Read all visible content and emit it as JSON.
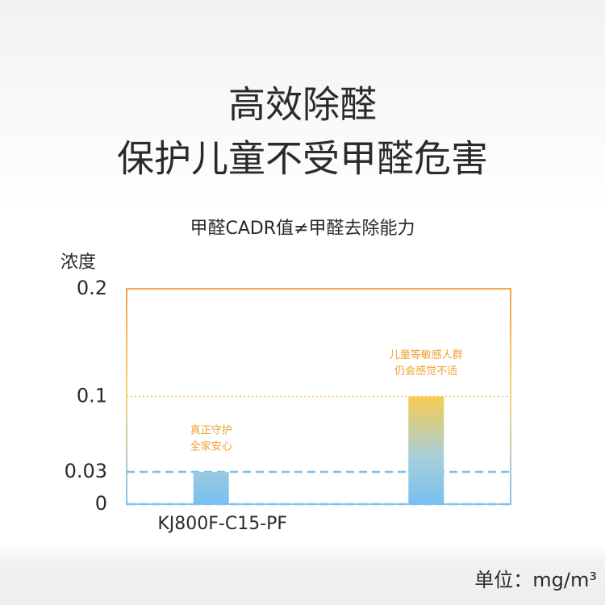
{
  "chart_data": {
    "type": "bar",
    "title": [
      "高效除醛",
      "保护儿童不受甲醛危害"
    ],
    "subtitle": "甲醛CADR值≠甲醛去除能力",
    "y_label": "浓度",
    "unit": "单位：mg/m³",
    "categories": [
      "KJ800F-C15-PF",
      null
    ],
    "values": [
      0.03,
      0.1
    ],
    "annotations": [
      [
        "真正守护",
        "全家安心"
      ],
      [
        "儿童等敏感人群",
        "仍会感觉不适"
      ]
    ],
    "ylim": [
      0,
      0.2
    ],
    "yticks": [
      0,
      0.03,
      0.1,
      0.2
    ],
    "grid": true
  }
}
